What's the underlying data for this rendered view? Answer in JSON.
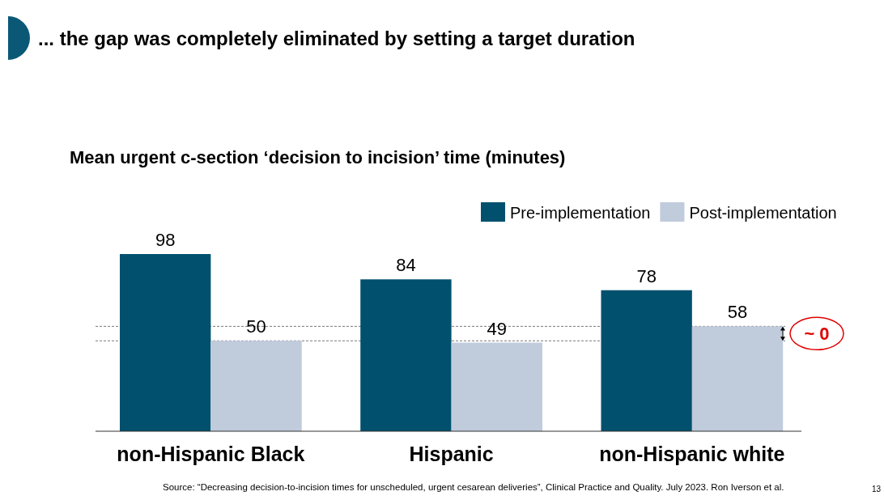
{
  "chart_data": {
    "type": "bar",
    "title": "... the gap was completely eliminated by setting a target duration",
    "subtitle": "Mean urgent c-section ‘decision to incision’ time (minutes)",
    "categories": [
      "non-Hispanic Black",
      "Hispanic",
      "non-Hispanic white"
    ],
    "series": [
      {
        "name": "Pre-implementation",
        "color": "#00506e",
        "values": [
          98,
          84,
          78
        ]
      },
      {
        "name": "Post-implementation",
        "color": "#c0cbdc",
        "values": [
          50,
          49,
          58
        ]
      }
    ],
    "data_labels": true,
    "legend": "top right",
    "ref_lines": [
      {
        "axis": "y",
        "value": 50,
        "line_style": "dashed",
        "color": "#555555"
      },
      {
        "axis": "y",
        "value": 58,
        "line_style": "dashed",
        "color": "#555555"
      }
    ],
    "annotations": [
      "~ 0",
      "Source: “Decreasing decision-to-incision times for unscheduled, urgent cesarean deliveries”, Clinical Practice and Quality. July 2023. Ron Iverson et al.",
      "13"
    ]
  }
}
